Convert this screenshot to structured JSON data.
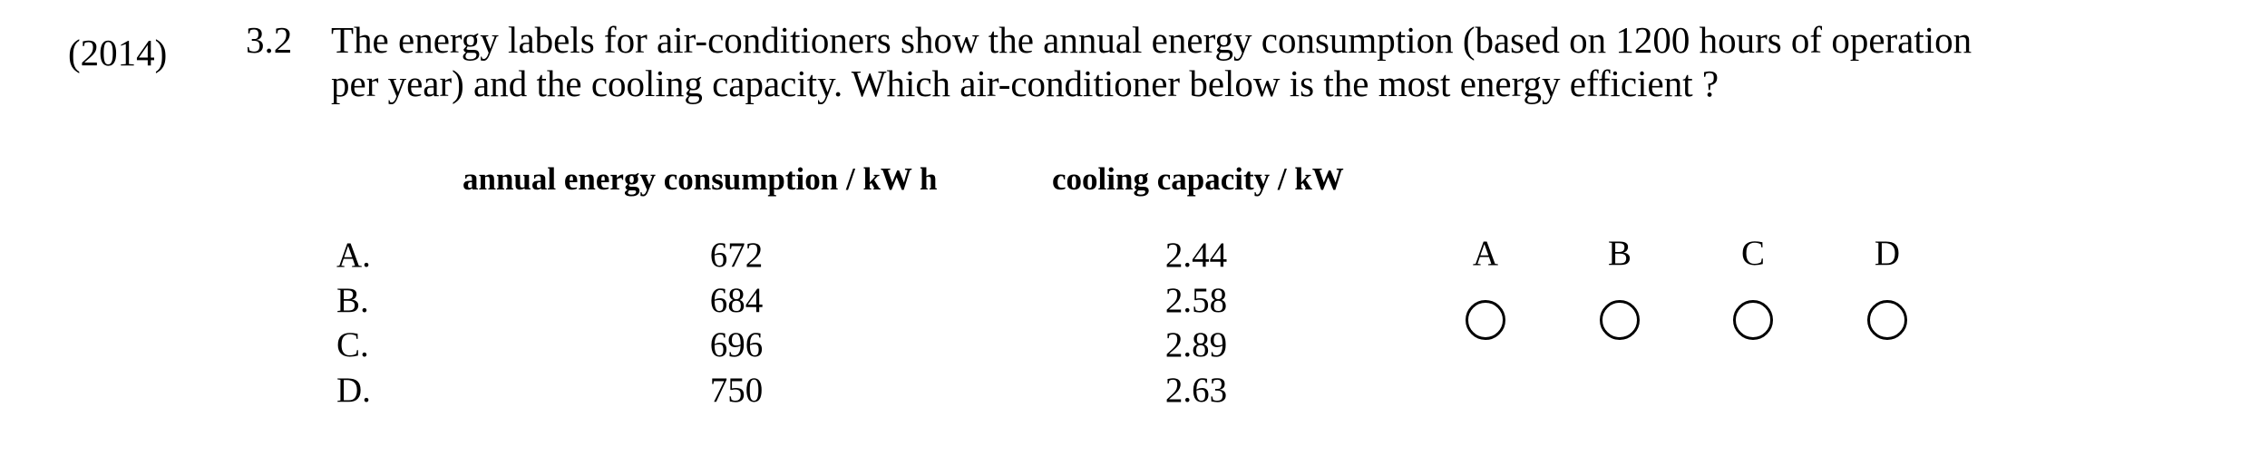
{
  "question": {
    "year": "(2014)",
    "number": "3.2",
    "line1": "The energy labels for air-conditioners show the annual energy consumption (based on 1200 hours of operation",
    "line2": "per year) and the cooling capacity.  Which air-conditioner below is the most energy efficient ?"
  },
  "table": {
    "headers": {
      "consumption": "annual energy consumption / kW h",
      "capacity": "cooling capacity / kW"
    },
    "rows": [
      {
        "option": "A.",
        "consumption": "672",
        "capacity": "2.44"
      },
      {
        "option": "B.",
        "consumption": "684",
        "capacity": "2.58"
      },
      {
        "option": "C.",
        "consumption": "696",
        "capacity": "2.89"
      },
      {
        "option": "D.",
        "consumption": "750",
        "capacity": "2.63"
      }
    ]
  },
  "answer_choices": [
    "A",
    "B",
    "C",
    "D"
  ]
}
